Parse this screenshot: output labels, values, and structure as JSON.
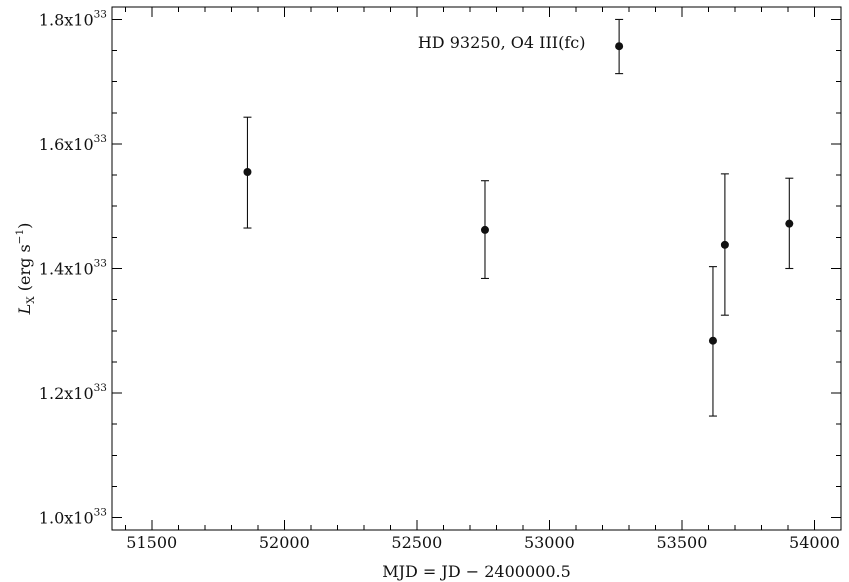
{
  "chart_data": {
    "type": "scatter",
    "annotation": "HD 93250, O4 III(fc)",
    "xlabel": "MJD = JD − 2400000.5",
    "ylabel": {
      "base": "L",
      "subscript": "X",
      "unit_open": " (erg s",
      "unit_exp": "−1",
      "unit_close": ")"
    },
    "xlim": [
      51350,
      54100
    ],
    "ylim": [
      9.8e+32,
      1.82e+33
    ],
    "xticks": [
      51500,
      52000,
      52500,
      53000,
      53500,
      54000
    ],
    "xtick_labels": [
      "51500",
      "52000",
      "52500",
      "53000",
      "53500",
      "54000"
    ],
    "yticks": [
      1e+33,
      1.2e+33,
      1.4e+33,
      1.6e+33,
      1.8e+33
    ],
    "ytick_labels": [
      {
        "mantissa": "1.0x10",
        "exp": "33"
      },
      {
        "mantissa": "1.2x10",
        "exp": "33"
      },
      {
        "mantissa": "1.4x10",
        "exp": "33"
      },
      {
        "mantissa": "1.6x10",
        "exp": "33"
      },
      {
        "mantissa": "1.8x10",
        "exp": "33"
      }
    ],
    "points": [
      {
        "x": 51861,
        "y": 1.555e+33,
        "ylo": 1.465e+33,
        "yhi": 1.643e+33
      },
      {
        "x": 52757,
        "y": 1.462e+33,
        "ylo": 1.384e+33,
        "yhi": 1.541e+33
      },
      {
        "x": 53263,
        "y": 1.757e+33,
        "ylo": 1.713e+33,
        "yhi": 1.8e+33
      },
      {
        "x": 53617,
        "y": 1.284e+33,
        "ylo": 1.163e+33,
        "yhi": 1.403e+33
      },
      {
        "x": 53662,
        "y": 1.438e+33,
        "ylo": 1.325e+33,
        "yhi": 1.552e+33
      },
      {
        "x": 53905,
        "y": 1.472e+33,
        "ylo": 1.4e+33,
        "yhi": 1.545e+33
      }
    ],
    "grid": false
  }
}
